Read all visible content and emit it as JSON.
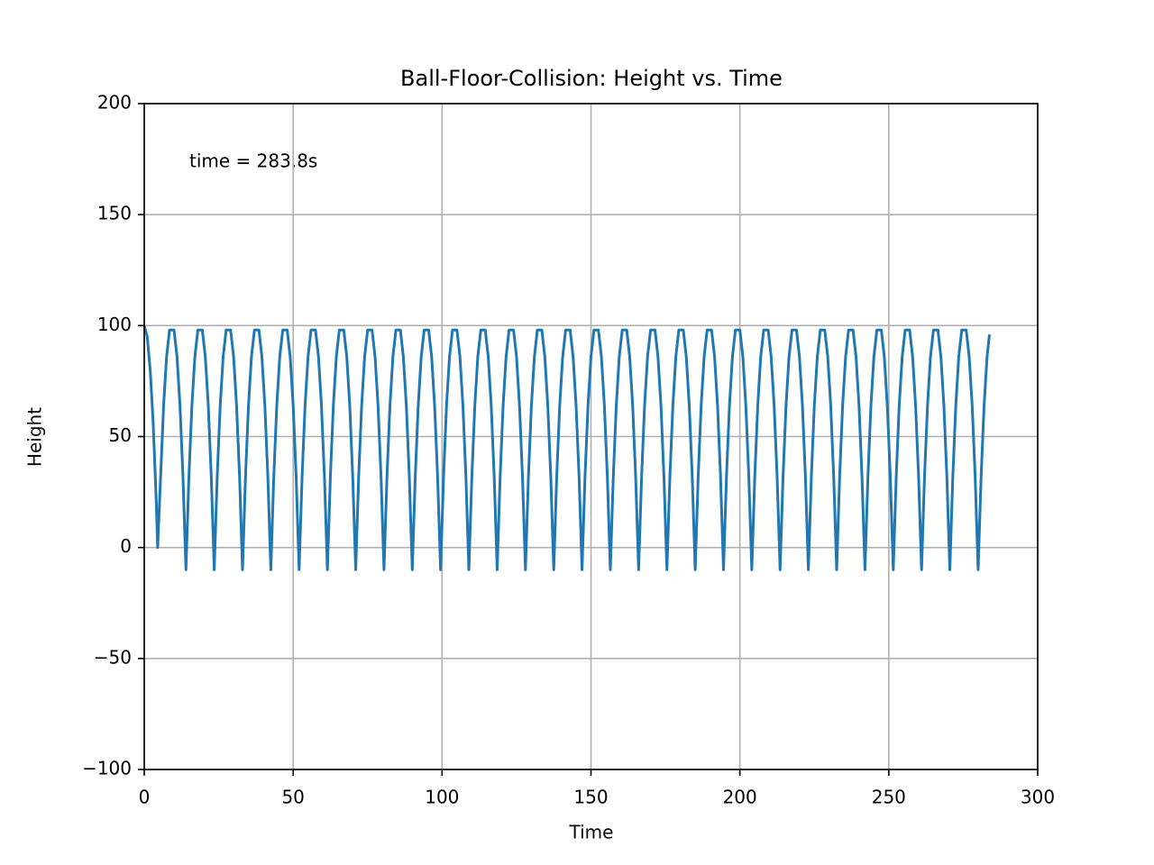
{
  "chart_data": {
    "type": "line",
    "title": "Ball-Floor-Collision: Height vs. Time",
    "xlabel": "Time",
    "ylabel": "Height",
    "annotation": "time = 283.8s",
    "xlim": [
      0,
      300
    ],
    "ylim": [
      -100,
      200
    ],
    "xticks": [
      0,
      50,
      100,
      150,
      200,
      250,
      300
    ],
    "yticks": [
      {
        "value": -100,
        "label": "−100"
      },
      {
        "value": -50,
        "label": "−50"
      },
      0,
      50,
      100,
      150,
      200
    ],
    "grid": true,
    "x": [
      0,
      1,
      2,
      3,
      4,
      4.5,
      5.5,
      6.5,
      7.5,
      8.5,
      10,
      11,
      12,
      13,
      14,
      15,
      16,
      17,
      18,
      19.5,
      20.5,
      21.5,
      22.5,
      23.5,
      24.5,
      25.5,
      26.5,
      27.5,
      29,
      30,
      31,
      32,
      33,
      34,
      35,
      36,
      37,
      38.5,
      39.5,
      40.5,
      41.5,
      42.5,
      43.5,
      44.5,
      45.5,
      46.5,
      48,
      49,
      50,
      51,
      52,
      53,
      54,
      55,
      56,
      57.5,
      58.5,
      59.5,
      60.5,
      61.5,
      62.5,
      63.5,
      64.5,
      65.5,
      67,
      68,
      69,
      70,
      71,
      72,
      73,
      74,
      75,
      76.5,
      77.5,
      78.5,
      79.5,
      80.5,
      81.5,
      82.5,
      83.5,
      84.5,
      86,
      87,
      88,
      89,
      90,
      91,
      92,
      93,
      94,
      95.5,
      96.5,
      97.5,
      98.5,
      99.5,
      100.5,
      101.5,
      102.5,
      103.5,
      105,
      106,
      107,
      108,
      109,
      110,
      111,
      112,
      113,
      114.5,
      115.5,
      116.5,
      117.5,
      118.5,
      119.5,
      120.5,
      121.5,
      122.5,
      124,
      125,
      126,
      127,
      128,
      129,
      130,
      131,
      132,
      133.5,
      134.5,
      135.5,
      136.5,
      137.5,
      138.5,
      139.5,
      140.5,
      141.5,
      143,
      144,
      145,
      146,
      147,
      148,
      149,
      150,
      151,
      152.5,
      153.5,
      154.5,
      155.5,
      156.5,
      157.5,
      158.5,
      159.5,
      160.5,
      162,
      163,
      164,
      165,
      166,
      167,
      168,
      169,
      170,
      171.5,
      172.5,
      173.5,
      174.5,
      175.5,
      176.5,
      177.5,
      178.5,
      179.5,
      181,
      182,
      183,
      184,
      185,
      186,
      187,
      188,
      189,
      190.5,
      191.5,
      192.5,
      193.5,
      194.5,
      195.5,
      196.5,
      197.5,
      198.5,
      200,
      201,
      202,
      203,
      204,
      205,
      206,
      207,
      208,
      209.5,
      210.5,
      211.5,
      212.5,
      213.5,
      214.5,
      215.5,
      216.5,
      217.5,
      219,
      220,
      221,
      222,
      223,
      224,
      225,
      226,
      227,
      228.5,
      229.5,
      230.5,
      231.5,
      232.5,
      233.5,
      234.5,
      235.5,
      236.5,
      238,
      239,
      240,
      241,
      242,
      243,
      244,
      245,
      246,
      247.5,
      248.5,
      249.5,
      250.5,
      251.5,
      252.5,
      253.5,
      254.5,
      255.5,
      257,
      258,
      259,
      260,
      261,
      262,
      263,
      264,
      265,
      266.5,
      267.5,
      268.5,
      269.5,
      270.5,
      271.5,
      272.5,
      273.5,
      274.5,
      276,
      277,
      278,
      279,
      280,
      281,
      282,
      283,
      283.8
    ],
    "series": [
      {
        "name": "Height",
        "color": "#1f77b4",
        "values": [
          100,
          95,
          80,
          56,
          22,
          0,
          32,
          64,
          86,
          98,
          98,
          86,
          64,
          32,
          -10,
          32,
          64,
          86,
          98,
          98,
          86,
          64,
          32,
          -10,
          32,
          64,
          86,
          98,
          98,
          86,
          64,
          32,
          -10,
          32,
          64,
          86,
          98,
          98,
          86,
          64,
          32,
          -10,
          32,
          64,
          86,
          98,
          98,
          86,
          64,
          32,
          -10,
          32,
          64,
          86,
          98,
          98,
          86,
          64,
          32,
          -10,
          32,
          64,
          86,
          98,
          98,
          86,
          64,
          32,
          -10,
          32,
          64,
          86,
          98,
          98,
          86,
          64,
          32,
          -10,
          32,
          64,
          86,
          98,
          98,
          86,
          64,
          32,
          -10,
          32,
          64,
          86,
          98,
          98,
          86,
          64,
          32,
          -10,
          32,
          64,
          86,
          98,
          98,
          86,
          64,
          32,
          -10,
          32,
          64,
          86,
          98,
          98,
          86,
          64,
          32,
          -10,
          32,
          64,
          86,
          98,
          98,
          86,
          64,
          32,
          -10,
          32,
          64,
          86,
          98,
          98,
          86,
          64,
          32,
          -10,
          32,
          64,
          86,
          98,
          98,
          86,
          64,
          32,
          -10,
          32,
          64,
          86,
          98,
          98,
          86,
          64,
          32,
          -10,
          32,
          64,
          86,
          98,
          98,
          86,
          64,
          32,
          -10,
          32,
          64,
          86,
          98,
          98,
          86,
          64,
          32,
          -10,
          32,
          64,
          86,
          98,
          98,
          86,
          64,
          32,
          -10,
          32,
          64,
          86,
          98,
          98,
          86,
          64,
          32,
          -10,
          32,
          64,
          86,
          98,
          98,
          86,
          64,
          32,
          -10,
          32,
          64,
          86,
          98,
          98,
          86,
          64,
          32,
          -10,
          32,
          64,
          86,
          98,
          98,
          86,
          64,
          32,
          -10,
          32,
          64,
          86,
          98,
          98,
          86,
          64,
          32,
          -10,
          32,
          64,
          86,
          98,
          98,
          86,
          64,
          32,
          -10,
          32,
          64,
          86,
          98,
          98,
          86,
          64,
          32,
          -10,
          32,
          64,
          86,
          98,
          98,
          86,
          64,
          32,
          -10,
          32,
          64,
          86,
          98,
          98,
          86,
          64,
          32,
          -10,
          32,
          64,
          86,
          98,
          98,
          86,
          64,
          32,
          -10,
          32,
          64,
          86,
          96
        ]
      }
    ]
  }
}
